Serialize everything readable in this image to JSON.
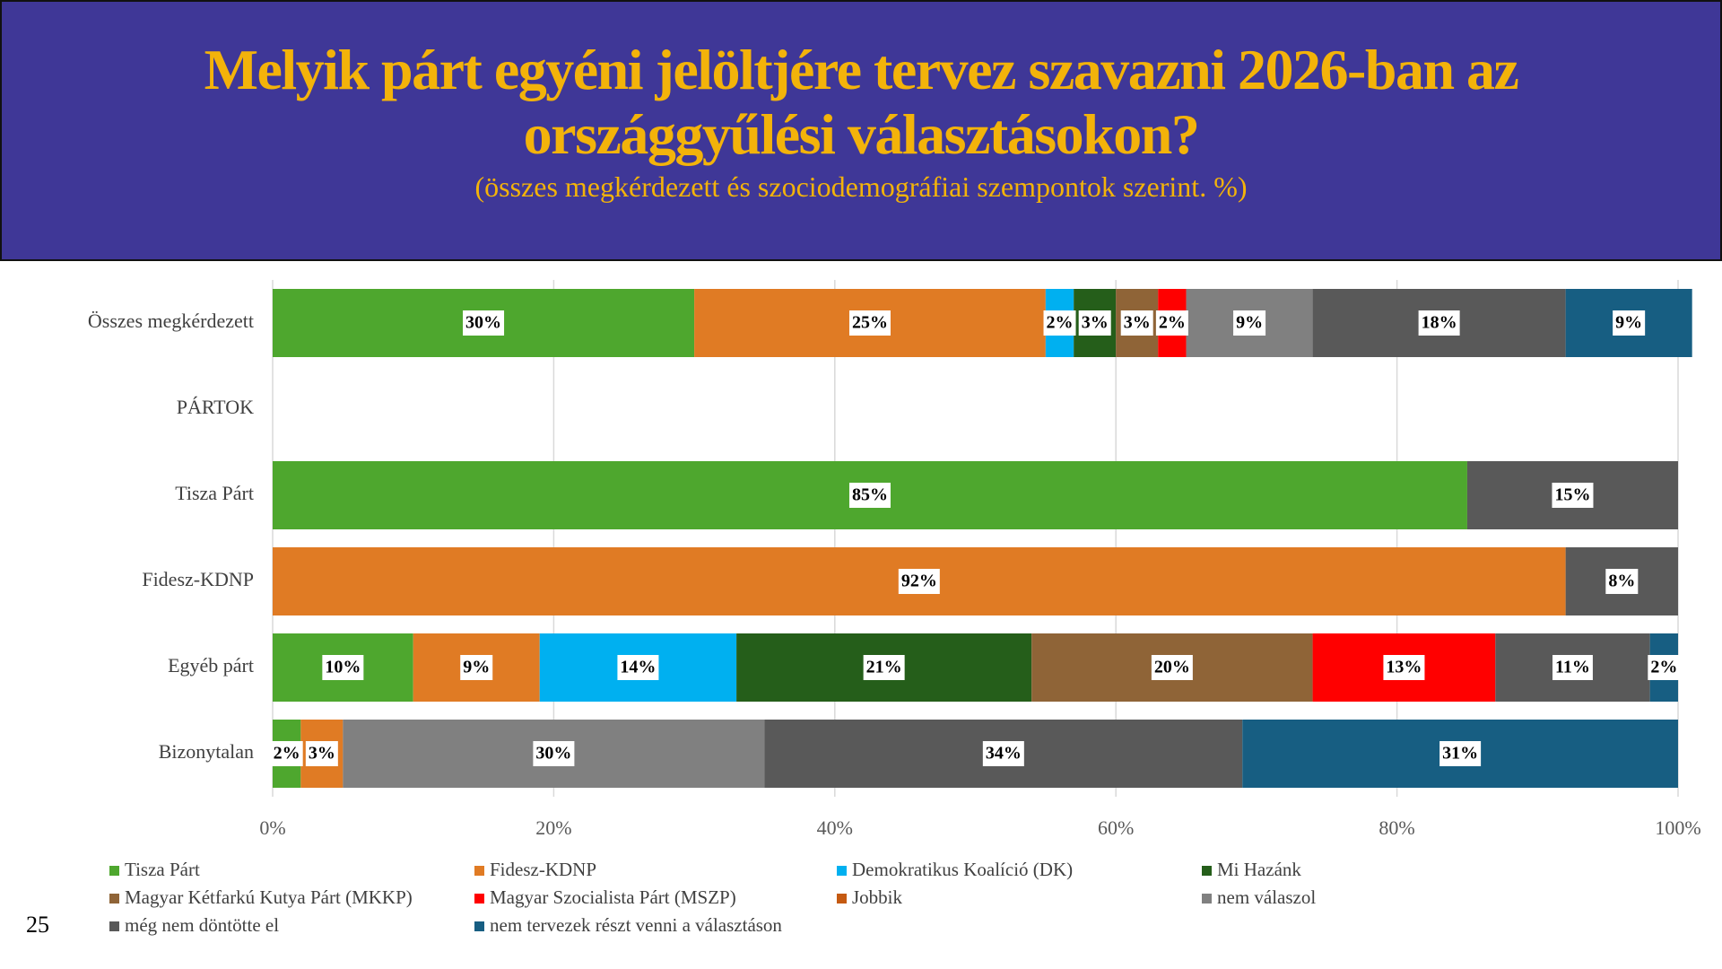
{
  "chart_data": {
    "type": "stacked_barh",
    "title": "Melyik párt egyéni jelöltjére tervez szavazni 2026-ban az országgyűlési választásokon?",
    "subtitle": "(összes megkérdezett és szociodemográfiai szempontok szerint. %)",
    "page_number": "25",
    "categories": [
      "Összes megkérdezett",
      "PÁRTOK",
      "Tisza Párt",
      "Fidesz-KDNP",
      "Egyéb párt",
      "Bizonytalan"
    ],
    "series": [
      {
        "name": "Tisza Párt",
        "color": "#4ea72e",
        "values": [
          30,
          null,
          85,
          null,
          10,
          2
        ],
        "value_labels": [
          "30%",
          null,
          "85%",
          null,
          "10%",
          "2%"
        ]
      },
      {
        "name": "Fidesz-KDNP",
        "color": "#e07b24",
        "values": [
          25,
          null,
          null,
          92,
          9,
          3
        ],
        "value_labels": [
          "25%",
          null,
          null,
          "92%",
          "9%",
          "3%"
        ]
      },
      {
        "name": "Demokratikus Koalíció (DK)",
        "color": "#00b0f0",
        "values": [
          2,
          null,
          null,
          null,
          14,
          null
        ],
        "value_labels": [
          "2%",
          null,
          null,
          null,
          "14%",
          null
        ]
      },
      {
        "name": "Mi Hazánk",
        "color": "#255e1a",
        "values": [
          3,
          null,
          null,
          null,
          21,
          null
        ],
        "value_labels": [
          "3%",
          null,
          null,
          null,
          "21%",
          null
        ]
      },
      {
        "name": "Magyar Kétfarkú Kutya Párt (MKKP)",
        "color": "#8f6437",
        "values": [
          3,
          null,
          null,
          null,
          20,
          null
        ],
        "value_labels": [
          "3%",
          null,
          null,
          null,
          "20%",
          null
        ]
      },
      {
        "name": "Magyar Szocialista Párt (MSZP)",
        "color": "#ff0000",
        "values": [
          2,
          null,
          null,
          null,
          13,
          null
        ],
        "value_labels": [
          "2%",
          null,
          null,
          null,
          "13%",
          null
        ]
      },
      {
        "name": "Jobbik",
        "color": "#c55a11",
        "values": [
          null,
          null,
          null,
          null,
          null,
          null
        ],
        "value_labels": [
          null,
          null,
          null,
          null,
          null,
          null
        ]
      },
      {
        "name": "nem válaszol",
        "color": "#808080",
        "values": [
          9,
          null,
          null,
          null,
          null,
          30
        ],
        "value_labels": [
          "9%",
          null,
          null,
          null,
          null,
          "30%"
        ]
      },
      {
        "name": "még nem döntötte el",
        "color": "#595959",
        "values": [
          18,
          null,
          15,
          8,
          11,
          34
        ],
        "value_labels": [
          "18%",
          null,
          "15%",
          "8%",
          "11%",
          "34%"
        ]
      },
      {
        "name": "nem tervezek részt venni a választáson",
        "color": "#175e82",
        "values": [
          9,
          null,
          null,
          null,
          2,
          31
        ],
        "value_labels": [
          "9%",
          null,
          null,
          null,
          "2%",
          "31%"
        ]
      }
    ],
    "xlim": [
      0,
      100
    ],
    "xticks": [
      {
        "value": 0,
        "label": "0%"
      },
      {
        "value": 20,
        "label": "20%"
      },
      {
        "value": 40,
        "label": "40%"
      },
      {
        "value": 60,
        "label": "60%"
      },
      {
        "value": 80,
        "label": "80%"
      },
      {
        "value": 100,
        "label": "100%"
      }
    ],
    "grid": true,
    "legend": "bottom"
  }
}
